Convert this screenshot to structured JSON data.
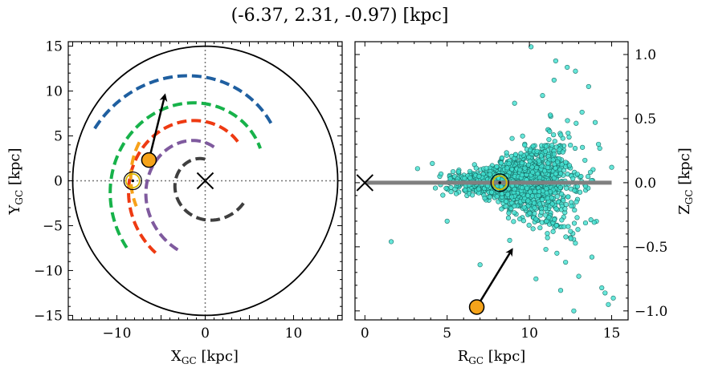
{
  "title": "(-6.37, 2.31, -0.97) [kpc]",
  "colors": {
    "arm_blue": "#1f5fa0",
    "arm_green": "#17b24a",
    "arm_red": "#ee3a12",
    "arm_purple": "#7f5a9e",
    "arm_gray": "#3f3f3f",
    "arm_orange": "#f7a11a",
    "star_fill": "#f5a31a",
    "scatter_fill": "#40e0d0",
    "disk_line": "#808080"
  },
  "chart_data": [
    {
      "type": "line",
      "panel": "left",
      "xlabel": "X_GC [kpc]",
      "ylabel": "Y_GC [kpc]",
      "xlim": [
        -15.5,
        15.5
      ],
      "ylim": [
        -15.5,
        15.5
      ],
      "xticks": [
        -10,
        0,
        10
      ],
      "yticks": [
        -15,
        -10,
        -5,
        0,
        5,
        10,
        15
      ],
      "tick_labels_x": [
        "−10",
        "0",
        "10"
      ],
      "tick_labels_y": [
        "−15",
        "−10",
        "−5",
        "0",
        "5",
        "10",
        "15"
      ],
      "boundary_circle_radius": 15,
      "sun": [
        -8.2,
        0.0
      ],
      "galactic_center": [
        0,
        0
      ],
      "star": [
        -6.37,
        2.31
      ],
      "velocity_arrow": {
        "from": [
          -6.37,
          2.31
        ],
        "to": [
          -4.6,
          9.4
        ]
      },
      "series": [
        {
          "color_key": "arm_blue",
          "r": [
            13.8,
            9.8
          ],
          "theta_deg": [
            155,
            40
          ]
        },
        {
          "color_key": "arm_green",
          "r": [
            11.6,
            7.2
          ],
          "theta_deg": [
            220,
            30
          ]
        },
        {
          "color_key": "arm_red",
          "r": [
            9.8,
            5.6
          ],
          "theta_deg": [
            235,
            45
          ]
        },
        {
          "color_key": "arm_purple",
          "r": [
            8.3,
            3.8
          ],
          "theta_deg": [
            248,
            72
          ]
        },
        {
          "color_key": "arm_gray",
          "r": [
            5.0,
            2.4
          ],
          "theta_deg": [
            330,
            90
          ]
        },
        {
          "color_key": "arm_orange",
          "r": [
            8.6,
            8.3
          ],
          "theta_deg": [
            150,
            200
          ]
        }
      ]
    },
    {
      "type": "scatter",
      "panel": "right",
      "xlabel": "R_GC [kpc]",
      "ylabel": "Z_GC [kpc]",
      "xlim": [
        -0.6,
        16
      ],
      "ylim": [
        -1.07,
        1.1
      ],
      "xticks": [
        0,
        5,
        10,
        15
      ],
      "yticks": [
        -1.0,
        -0.5,
        0.0,
        0.5,
        1.0
      ],
      "tick_labels_x": [
        "0",
        "5",
        "10",
        "15"
      ],
      "tick_labels_y": [
        "−1.0",
        "−0.5",
        "0.0",
        "0.5",
        "1.0"
      ],
      "disk_line": {
        "x": [
          0,
          15
        ],
        "z": 0
      },
      "galactic_center": [
        0,
        0
      ],
      "sun": [
        8.2,
        0.0
      ],
      "star": [
        6.8,
        -0.97
      ],
      "velocity_arrow": {
        "from": [
          6.8,
          -0.97
        ],
        "to": [
          8.9,
          -0.53
        ]
      },
      "outlier_points": [
        [
          1.6,
          -0.46
        ],
        [
          7.0,
          -0.64
        ],
        [
          10.1,
          1.06
        ],
        [
          11.6,
          0.95
        ],
        [
          12.3,
          0.9
        ],
        [
          12.8,
          0.87
        ],
        [
          13.6,
          0.75
        ],
        [
          14.0,
          0.47
        ],
        [
          14.4,
          -0.82
        ],
        [
          14.6,
          -0.86
        ],
        [
          15.1,
          -0.9
        ],
        [
          13.0,
          -0.73
        ],
        [
          12.2,
          -0.62
        ],
        [
          11.0,
          -0.52
        ],
        [
          5.0,
          -0.3
        ],
        [
          3.2,
          0.11
        ],
        [
          4.1,
          0.15
        ],
        [
          13.2,
          0.55
        ],
        [
          14.8,
          -0.95
        ],
        [
          12.7,
          -1.0
        ],
        [
          10.4,
          -0.75
        ],
        [
          11.5,
          0.8
        ],
        [
          9.1,
          0.62
        ],
        [
          8.8,
          -0.45
        ],
        [
          13.8,
          -0.58
        ],
        [
          14.2,
          0.3
        ],
        [
          15.0,
          0.12
        ],
        [
          12.5,
          -0.38
        ],
        [
          10.8,
          0.68
        ],
        [
          11.9,
          -0.84
        ]
      ],
      "cloud": {
        "n_points": 1800,
        "r_mean": 9.3,
        "r_sd": 1.9,
        "z_sd_base": 0.04,
        "z_flare": 0.035
      }
    }
  ]
}
